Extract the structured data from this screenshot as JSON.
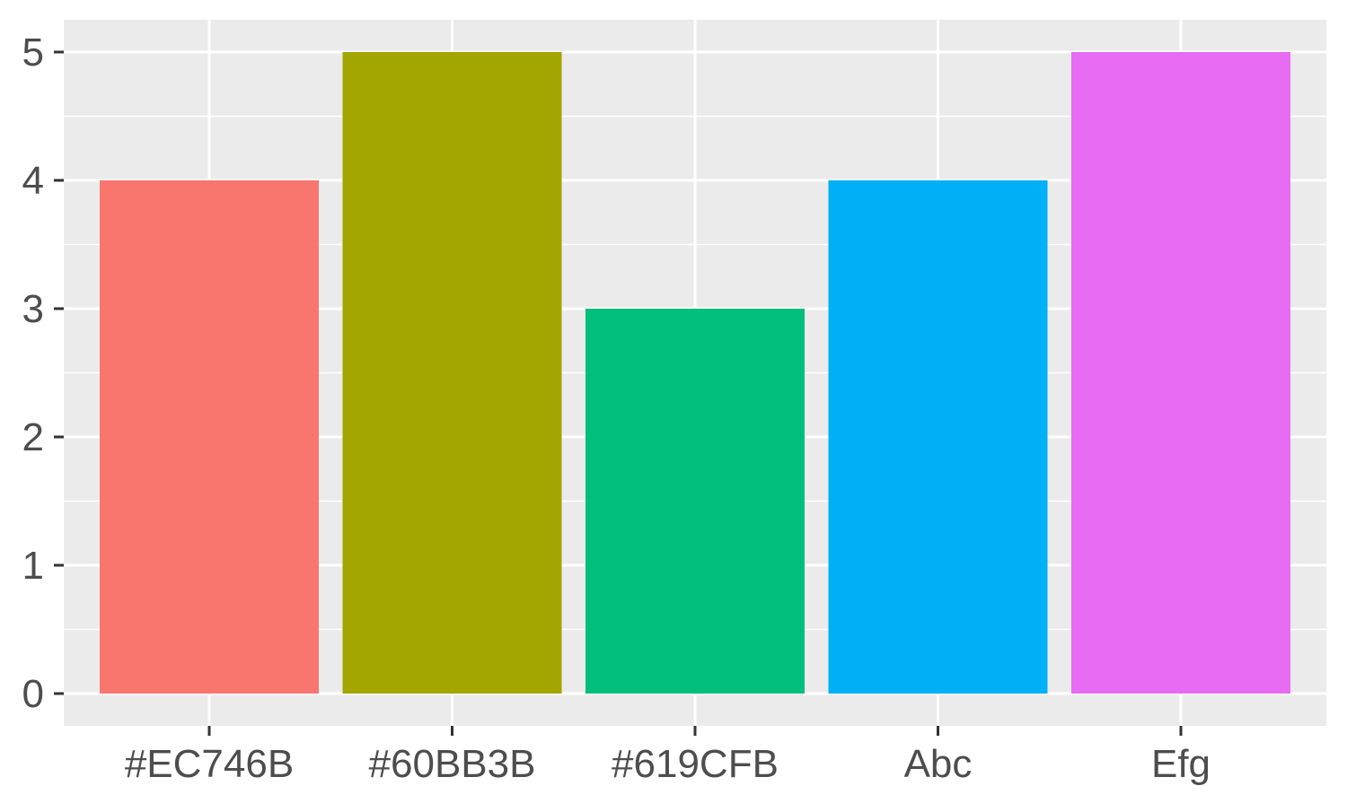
{
  "chart_data": {
    "type": "bar",
    "categories": [
      "#EC746B",
      "#60BB3B",
      "#619CFB",
      "Abc",
      "Efg"
    ],
    "values": [
      4,
      5,
      3,
      4,
      5
    ],
    "bar_colors": [
      "#F8766D",
      "#A3A500",
      "#00BF7D",
      "#00B0F6",
      "#E76BF3"
    ],
    "title": "",
    "xlabel": "",
    "ylabel": "",
    "ylim": [
      0,
      5
    ],
    "yticks": [
      0,
      1,
      2,
      3,
      4,
      5
    ],
    "grid": true,
    "panel_background": "#EBEBEB",
    "gridline_color": "#FFFFFF",
    "tick_label_color": "#4D4D4D",
    "legend": "none"
  }
}
